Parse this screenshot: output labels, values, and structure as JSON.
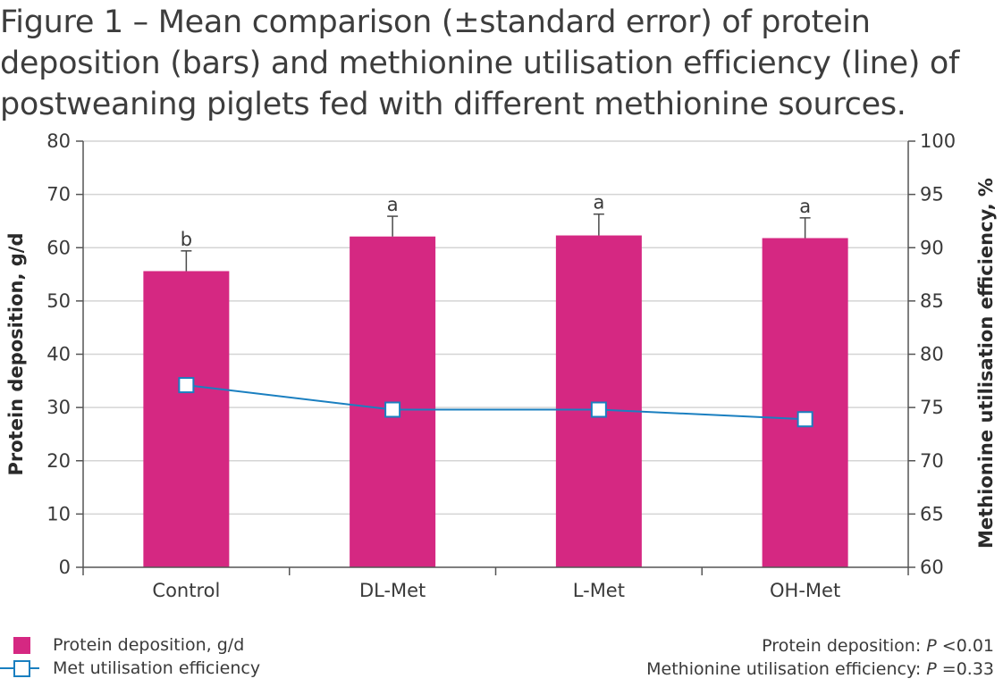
{
  "title_lines": [
    "Figure 1 – Mean comparison (±standard error) of protein",
    "deposition (bars) and methionine utilisation efficiency (line) of",
    "postweaning piglets fed with different methionine sources."
  ],
  "chart_data": {
    "type": "bar",
    "categories": [
      "Control",
      "DL-Met",
      "L-Met",
      "OH-Met"
    ],
    "series": [
      {
        "name": "Protein deposition, g/d",
        "axis": "left",
        "type": "bar",
        "values": [
          55.6,
          62.1,
          62.3,
          61.8
        ],
        "error": [
          3.8,
          3.8,
          4.0,
          3.8
        ],
        "significance": [
          "b",
          "a",
          "a",
          "a"
        ],
        "color": "#d52882"
      },
      {
        "name": "Met utilisation efficiency",
        "axis": "right",
        "type": "line",
        "values": [
          77.1,
          74.8,
          74.8,
          73.9
        ],
        "color": "#1a7fc0"
      }
    ],
    "ylabel": "Protein deposition, g/d",
    "ylim": [
      0,
      80
    ],
    "yticks": [
      0,
      10,
      20,
      30,
      40,
      50,
      60,
      70,
      80
    ],
    "y2label": "Methionine utilisation efficiency, %",
    "y2lim": [
      60,
      100
    ],
    "y2ticks": [
      60,
      65,
      70,
      75,
      80,
      85,
      90,
      95,
      100
    ],
    "grid": true,
    "legend_position": "bottom-left"
  },
  "legend": {
    "bar_label": "Protein deposition, g/d",
    "line_label": "Met utilisation efficiency"
  },
  "notes": [
    {
      "prefix": "Protein deposition: ",
      "p": "P",
      "value": " <0.01"
    },
    {
      "prefix": "Methionine utilisation efficiency: ",
      "p": "P",
      "value": " =0.33"
    }
  ],
  "colors": {
    "bar": "#d52882",
    "line": "#1a7fc0",
    "grid": "#d4d4d4",
    "axis": "#555555"
  }
}
